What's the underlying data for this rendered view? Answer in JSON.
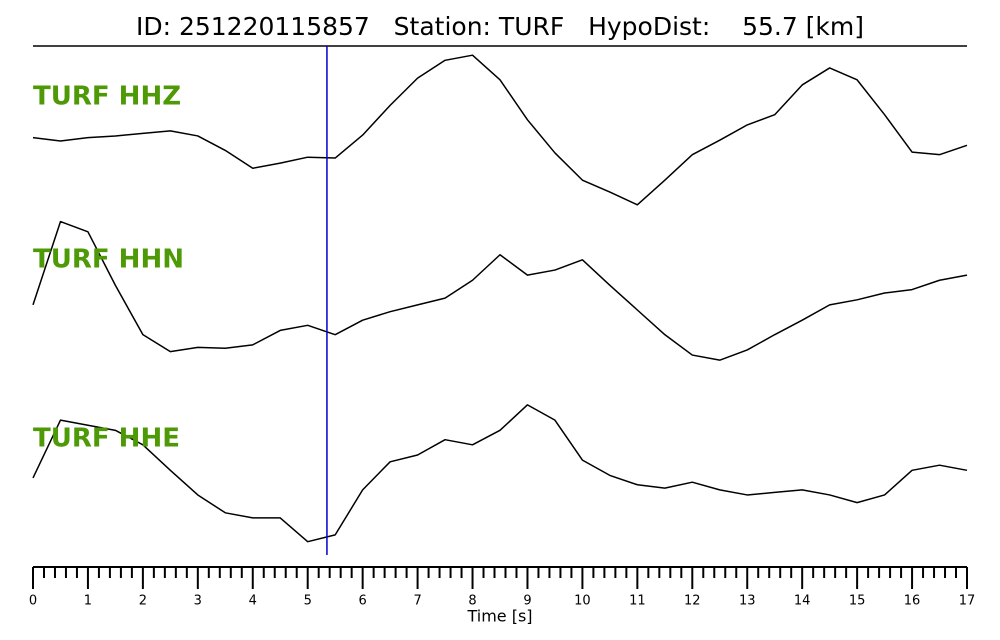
{
  "chart_data": {
    "type": "seismogram",
    "title": "ID: 251220115857   Station: TURF   HypoDist:    55.7 [km]",
    "xlabel": "Time [s]",
    "x": [
      0,
      0.5,
      1,
      1.5,
      2,
      2.5,
      3,
      3.5,
      4,
      4.5,
      5,
      5.5,
      6,
      6.5,
      7,
      7.5,
      8,
      8.5,
      9,
      9.5,
      10,
      10.5,
      11,
      11.5,
      12,
      12.5,
      13,
      13.5,
      14,
      14.5,
      15,
      15.5,
      16,
      16.5,
      17
    ],
    "series": [
      {
        "name": "TURF HHZ",
        "color": "#000000",
        "values": [
          -0.09,
          -0.13,
          -0.09,
          -0.07,
          -0.04,
          -0.01,
          -0.07,
          -0.24,
          -0.45,
          -0.39,
          -0.32,
          -0.33,
          -0.06,
          0.29,
          0.61,
          0.82,
          0.88,
          0.59,
          0.12,
          -0.27,
          -0.59,
          -0.73,
          -0.88,
          -0.59,
          -0.29,
          -0.12,
          0.06,
          0.18,
          0.53,
          0.73,
          0.59,
          0.18,
          -0.26,
          -0.29,
          -0.18
        ]
      },
      {
        "name": "TURF HHN",
        "color": "#000000",
        "values": [
          -0.14,
          0.84,
          0.72,
          0.09,
          -0.49,
          -0.69,
          -0.64,
          -0.65,
          -0.61,
          -0.44,
          -0.38,
          -0.49,
          -0.32,
          -0.22,
          -0.14,
          -0.06,
          0.15,
          0.45,
          0.21,
          0.27,
          0.39,
          0.09,
          -0.2,
          -0.49,
          -0.73,
          -0.79,
          -0.67,
          -0.49,
          -0.32,
          -0.14,
          -0.08,
          0,
          0.04,
          0.15,
          0.21
        ]
      },
      {
        "name": "TURF HHE",
        "color": "#000000",
        "values": [
          -0.07,
          0.61,
          0.55,
          0.49,
          0.32,
          0.02,
          -0.27,
          -0.48,
          -0.54,
          -0.54,
          -0.82,
          -0.74,
          -0.21,
          0.12,
          0.2,
          0.38,
          0.32,
          0.49,
          0.79,
          0.61,
          0.14,
          -0.04,
          -0.15,
          -0.19,
          -0.12,
          -0.21,
          -0.27,
          -0.24,
          -0.21,
          -0.27,
          -0.36,
          -0.27,
          0.02,
          0.08,
          0.02
        ]
      }
    ],
    "label_color": "#4e9a06",
    "ylim": [
      -1,
      1
    ],
    "xlim": [
      0,
      17
    ],
    "xticks": [
      0,
      1,
      2,
      3,
      4,
      5,
      6,
      7,
      8,
      9,
      10,
      11,
      12,
      13,
      14,
      15,
      16,
      17
    ],
    "xminorticks": [
      0.2,
      0.4,
      0.6,
      0.8,
      1.2,
      1.4,
      1.6,
      1.8,
      2.2,
      2.4,
      2.6,
      2.8,
      3.2,
      3.4,
      3.6,
      3.8,
      4.2,
      4.4,
      4.6,
      4.8,
      5.2,
      5.4,
      5.6,
      5.8,
      6.2,
      6.4,
      6.6,
      6.8,
      7.2,
      7.4,
      7.6,
      7.8,
      8.2,
      8.4,
      8.6,
      8.8,
      9.2,
      9.4,
      9.6,
      9.8,
      10.2,
      10.4,
      10.6,
      10.8,
      11.2,
      11.4,
      11.6,
      11.8,
      12.2,
      12.4,
      12.6,
      12.8,
      13.2,
      13.4,
      13.6,
      13.8,
      14.2,
      14.4,
      14.6,
      14.8,
      15.2,
      15.4,
      15.6,
      15.8,
      16.2,
      16.4,
      16.6,
      16.8
    ],
    "pick": 5.35,
    "pick_color": "#0000cc"
  }
}
